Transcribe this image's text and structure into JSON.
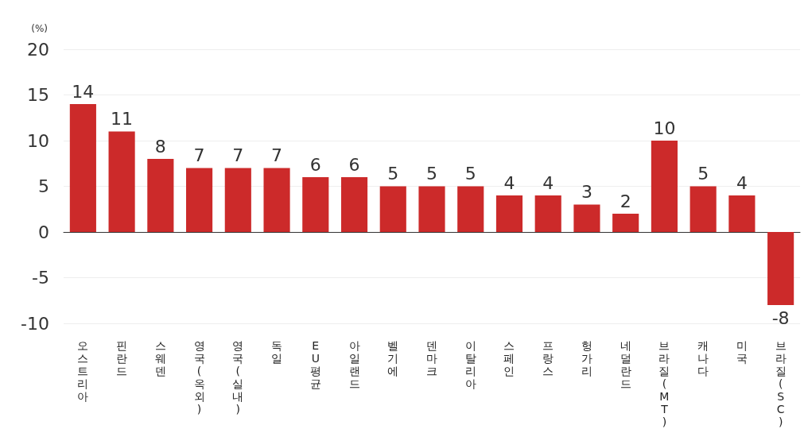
{
  "chart_data": {
    "type": "bar",
    "ylabel": "(%)",
    "categories": [
      "오스트리아",
      "핀란드",
      "스웨덴",
      "영국(옥외)",
      "영국(실내)",
      "독일",
      "EU평균",
      "아일랜드",
      "벨기에",
      "덴마크",
      "이탈리아",
      "스페인",
      "프랑스",
      "헝가리",
      "네덜란드",
      "브라질(MT)",
      "캐나다",
      "미국",
      "브라질(SC)"
    ],
    "values": [
      14,
      11,
      8,
      7,
      7,
      7,
      6,
      6,
      5,
      5,
      5,
      4,
      4,
      3,
      2,
      10,
      5,
      4,
      -8
    ],
    "color": "#cc2a2a",
    "ylim": [
      -10,
      20
    ],
    "yticks": [
      -10,
      -5,
      0,
      5,
      10,
      15,
      20
    ],
    "grid": "y",
    "data_labels": true
  }
}
